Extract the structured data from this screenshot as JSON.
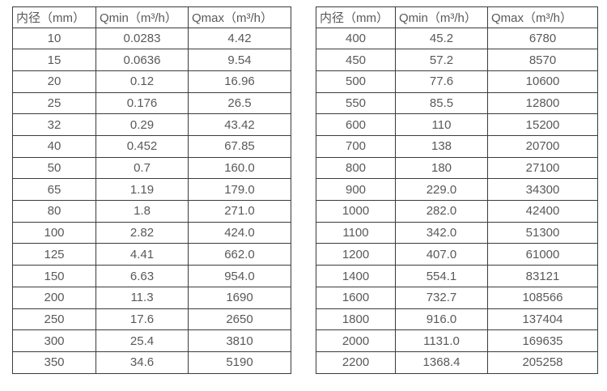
{
  "colors": {
    "background": "#ffffff",
    "border": "#3b3b3b",
    "text": "#595959"
  },
  "tables": [
    {
      "name": "small-diameter-spec-table",
      "headers": [
        "内径（mm）",
        "Qmin（m³/h）",
        "Qmax（m³/h）"
      ],
      "rows": [
        [
          "10",
          "0.0283",
          "4.42"
        ],
        [
          "15",
          "0.0636",
          "9.54"
        ],
        [
          "20",
          "0.12",
          "16.96"
        ],
        [
          "25",
          "0.176",
          "26.5"
        ],
        [
          "32",
          "0.29",
          "43.42"
        ],
        [
          "40",
          "0.452",
          "67.85"
        ],
        [
          "50",
          "0.7",
          "160.0"
        ],
        [
          "65",
          "1.19",
          "179.0"
        ],
        [
          "80",
          "1.8",
          "271.0"
        ],
        [
          "100",
          "2.82",
          "424.0"
        ],
        [
          "125",
          "4.41",
          "662.0"
        ],
        [
          "150",
          "6.63",
          "954.0"
        ],
        [
          "200",
          "11.3",
          "1690"
        ],
        [
          "250",
          "17.6",
          "2650"
        ],
        [
          "300",
          "25.4",
          "3810"
        ],
        [
          "350",
          "34.6",
          "5190"
        ]
      ]
    },
    {
      "name": "large-diameter-spec-table",
      "headers": [
        "内径（mm）",
        "Qmin（m³/h）",
        "Qmax（m³/h）"
      ],
      "rows": [
        [
          "400",
          "45.2",
          "6780"
        ],
        [
          "450",
          "57.2",
          "8570"
        ],
        [
          "500",
          "77.6",
          "10600"
        ],
        [
          "550",
          "85.5",
          "12800"
        ],
        [
          "600",
          "110",
          "15200"
        ],
        [
          "700",
          "138",
          "20700"
        ],
        [
          "800",
          "180",
          "27100"
        ],
        [
          "900",
          "229.0",
          "34300"
        ],
        [
          "1000",
          "282.0",
          "42400"
        ],
        [
          "1100",
          "342.0",
          "51300"
        ],
        [
          "1200",
          "407.0",
          "61000"
        ],
        [
          "1400",
          "554.1",
          "83121"
        ],
        [
          "1600",
          "732.7",
          "108566"
        ],
        [
          "1800",
          "916.0",
          "137404"
        ],
        [
          "2000",
          "1131.0",
          "169635"
        ],
        [
          "2200",
          "1368.4",
          "205258"
        ]
      ]
    }
  ]
}
